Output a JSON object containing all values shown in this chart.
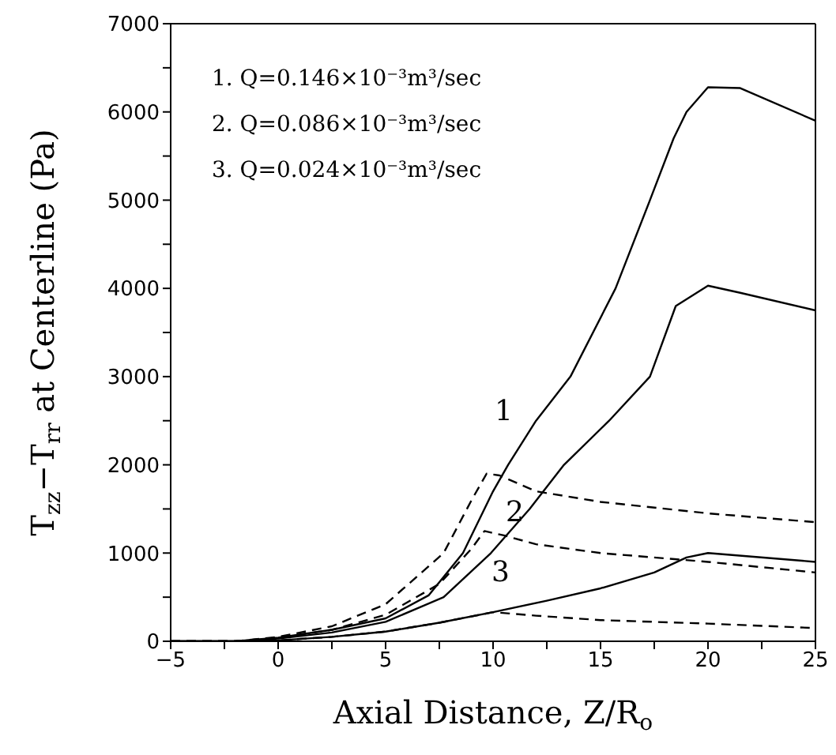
{
  "chart_data": {
    "type": "line",
    "xlabel": "Axial Distance, Z/R$_{o}$",
    "ylabel": "T$_{zz}$−T$_{rr}$ at Centerline (Pa)",
    "xlim": [
      -5,
      25
    ],
    "xticks": [
      {
        "value": -5,
        "label": "−5"
      },
      {
        "value": -2.5,
        "label": null
      },
      0,
      {
        "value": 2.5,
        "label": null
      },
      5,
      {
        "value": 7.5,
        "label": null
      },
      10,
      {
        "value": 12.5,
        "label": null
      },
      15,
      {
        "value": 17.5,
        "label": null
      },
      20,
      {
        "value": 22.5,
        "label": null
      },
      25
    ],
    "ylim": [
      0,
      7000
    ],
    "yticks": [
      0,
      {
        "value": 500,
        "label": null
      },
      1000,
      {
        "value": 1500,
        "label": null
      },
      2000,
      {
        "value": 2500,
        "label": null
      },
      3000,
      {
        "value": 3500,
        "label": null
      },
      4000,
      {
        "value": 4500,
        "label": null
      },
      5000,
      {
        "value": 5500,
        "label": null
      },
      6000,
      {
        "value": 6500,
        "label": null
      },
      7000
    ],
    "marker": "none",
    "annotations": [
      "1.  Q=0.146×10⁻³m³/sec",
      "2.  Q=0.086×10⁻³m³/sec",
      "3.  Q=0.024×10⁻³m³/sec",
      "1",
      "2",
      "3"
    ],
    "series": [
      {
        "color": "#000000",
        "line_style": "solid",
        "x": [
          -5,
          -2,
          0,
          2.5,
          5,
          7,
          8.6,
          10,
          10.7,
          12,
          13.6,
          15.7,
          17.3,
          18.4,
          19,
          20,
          21.5,
          25
        ],
        "values": [
          0,
          0,
          40,
          130,
          260,
          520,
          1000,
          1700,
          2000,
          2500,
          3000,
          4000,
          5000,
          5700,
          6000,
          6280,
          6270,
          5900
        ]
      },
      {
        "color": "#000000",
        "line_style": "solid",
        "x": [
          -5,
          -2,
          0,
          2.5,
          5,
          7.7,
          9.9,
          11.7,
          13.3,
          15.4,
          17.3,
          18.5,
          20,
          21.5,
          25
        ],
        "values": [
          0,
          0,
          30,
          100,
          220,
          500,
          1000,
          1500,
          2000,
          2500,
          3000,
          3800,
          4030,
          3950,
          3750
        ]
      },
      {
        "color": "#000000",
        "line_style": "solid",
        "x": [
          -5,
          -2,
          0,
          2.5,
          5,
          7.5,
          10,
          12.5,
          15,
          17.5,
          19,
          20,
          25
        ],
        "values": [
          0,
          0,
          10,
          50,
          110,
          210,
          330,
          460,
          600,
          780,
          950,
          1000,
          900
        ]
      },
      {
        "color": "#000000",
        "line_style": "dashed",
        "x": [
          -5,
          -2,
          0,
          2.5,
          5,
          7.7,
          9,
          9.7,
          10.3,
          12,
          15,
          20,
          25
        ],
        "values": [
          0,
          0,
          50,
          170,
          420,
          1000,
          1600,
          1900,
          1880,
          1700,
          1580,
          1450,
          1350
        ]
      },
      {
        "color": "#000000",
        "line_style": "dashed",
        "x": [
          -5,
          -2,
          0,
          2.5,
          5,
          7.5,
          9,
          9.6,
          10.5,
          12,
          15,
          20,
          25
        ],
        "values": [
          0,
          0,
          40,
          130,
          300,
          650,
          1050,
          1250,
          1200,
          1100,
          1000,
          900,
          780
        ]
      },
      {
        "color": "#000000",
        "line_style": "dashed",
        "x": [
          -5,
          -2,
          0,
          2.5,
          5,
          7.5,
          10,
          12,
          15,
          20,
          25
        ],
        "values": [
          0,
          0,
          10,
          50,
          110,
          210,
          330,
          290,
          240,
          200,
          150
        ]
      }
    ]
  }
}
